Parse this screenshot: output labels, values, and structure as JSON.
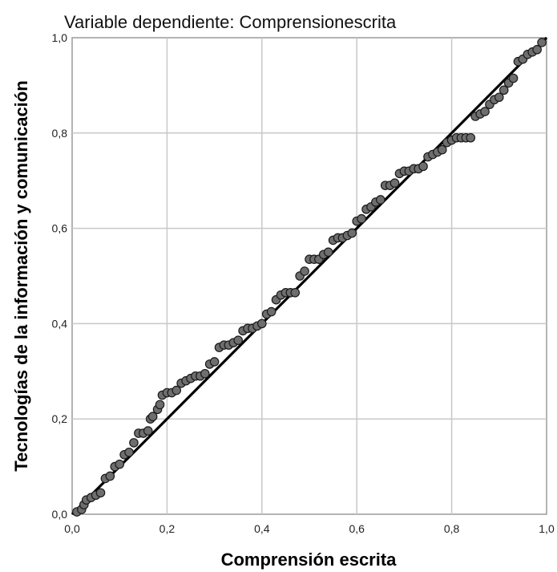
{
  "chart_data": {
    "type": "scatter",
    "title": "Variable dependiente: Comprensionescrita",
    "xlabel": "Comprensión escrita",
    "ylabel": "Tecnologías de la información y comunicación",
    "xlim": [
      0,
      1
    ],
    "ylim": [
      0,
      1
    ],
    "xticks": [
      "0,0",
      "0,2",
      "0,4",
      "0,6",
      "0,8",
      "1,0"
    ],
    "yticks": [
      "0,0",
      "0,2",
      "0,4",
      "0,6",
      "0,8",
      "1,0"
    ],
    "grid": true,
    "reference_line": {
      "from": [
        0,
        0
      ],
      "to": [
        1,
        1
      ]
    },
    "series": [
      {
        "x": [
          0.01,
          0.02,
          0.025,
          0.03,
          0.04,
          0.05,
          0.06,
          0.07,
          0.08,
          0.09,
          0.1,
          0.11,
          0.12,
          0.13,
          0.14,
          0.15,
          0.16,
          0.165,
          0.17,
          0.18,
          0.185,
          0.19,
          0.2,
          0.21,
          0.22,
          0.23,
          0.24,
          0.25,
          0.26,
          0.27,
          0.28,
          0.29,
          0.3,
          0.31,
          0.32,
          0.33,
          0.34,
          0.35,
          0.36,
          0.37,
          0.38,
          0.39,
          0.4,
          0.41,
          0.42,
          0.43,
          0.44,
          0.45,
          0.46,
          0.47,
          0.48,
          0.49,
          0.5,
          0.51,
          0.52,
          0.53,
          0.54,
          0.55,
          0.56,
          0.57,
          0.58,
          0.59,
          0.6,
          0.61,
          0.62,
          0.63,
          0.64,
          0.65,
          0.66,
          0.67,
          0.68,
          0.69,
          0.7,
          0.71,
          0.72,
          0.73,
          0.74,
          0.75,
          0.76,
          0.77,
          0.78,
          0.79,
          0.8,
          0.81,
          0.82,
          0.83,
          0.84,
          0.85,
          0.86,
          0.87,
          0.88,
          0.89,
          0.9,
          0.91,
          0.92,
          0.93,
          0.94,
          0.95,
          0.96,
          0.97,
          0.98,
          0.99
        ],
        "y": [
          0.005,
          0.01,
          0.02,
          0.03,
          0.035,
          0.04,
          0.045,
          0.075,
          0.08,
          0.1,
          0.105,
          0.125,
          0.13,
          0.15,
          0.17,
          0.17,
          0.175,
          0.2,
          0.205,
          0.22,
          0.23,
          0.25,
          0.255,
          0.255,
          0.26,
          0.275,
          0.28,
          0.285,
          0.29,
          0.29,
          0.295,
          0.315,
          0.32,
          0.35,
          0.355,
          0.355,
          0.36,
          0.365,
          0.385,
          0.39,
          0.39,
          0.395,
          0.4,
          0.42,
          0.425,
          0.45,
          0.46,
          0.465,
          0.465,
          0.465,
          0.5,
          0.51,
          0.535,
          0.535,
          0.535,
          0.545,
          0.55,
          0.575,
          0.58,
          0.58,
          0.585,
          0.59,
          0.615,
          0.62,
          0.64,
          0.645,
          0.655,
          0.66,
          0.69,
          0.69,
          0.695,
          0.715,
          0.72,
          0.72,
          0.725,
          0.725,
          0.73,
          0.75,
          0.755,
          0.76,
          0.765,
          0.78,
          0.785,
          0.79,
          0.79,
          0.79,
          0.79,
          0.835,
          0.84,
          0.845,
          0.86,
          0.87,
          0.875,
          0.89,
          0.905,
          0.915,
          0.95,
          0.955,
          0.965,
          0.97,
          0.975,
          0.99
        ]
      }
    ]
  }
}
